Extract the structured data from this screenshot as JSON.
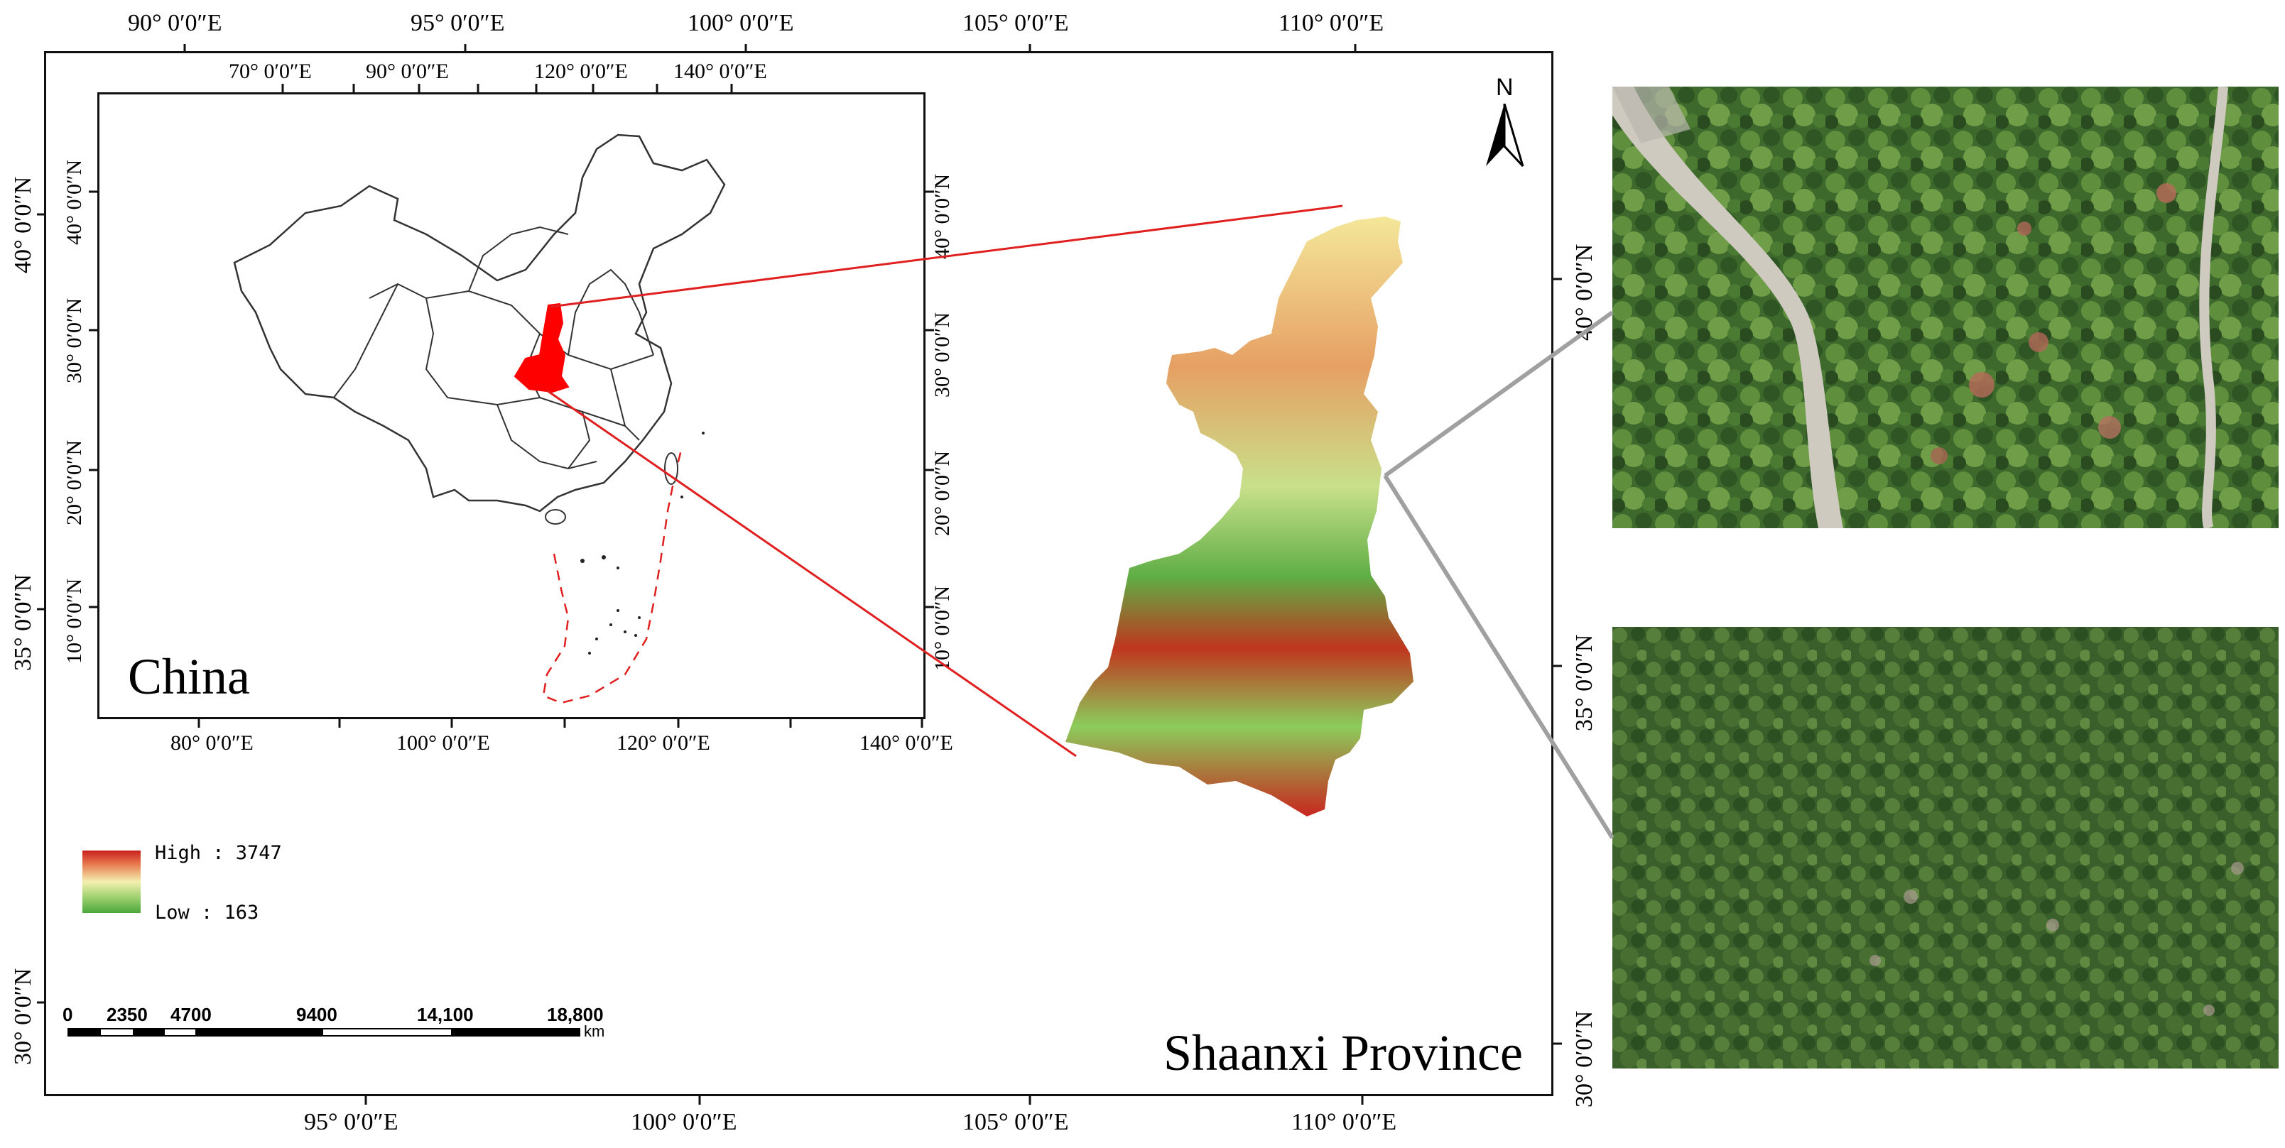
{
  "main_map": {
    "title": "Shaanxi Province",
    "top_ticks": [
      "90° 0′0″E",
      "95° 0′0″E",
      "100° 0′0″E",
      "105° 0′0″E",
      "110° 0′0″E"
    ],
    "bottom_ticks": [
      "95° 0′0″E",
      "100° 0′0″E",
      "105° 0′0″E",
      "110° 0′0″E"
    ],
    "left_ticks": [
      "40° 0′0″N",
      "35° 0′0″N",
      "30° 0′0″N"
    ],
    "right_ticks": [
      "40° 0′0″N",
      "35° 0′0″N",
      "30° 0′0″N"
    ],
    "north_arrow_label": "N"
  },
  "inset_map": {
    "title": "China",
    "top_ticks": [
      "70° 0′0″E",
      "90° 0′0″E",
      "120° 0′0″E",
      "140° 0′0″E"
    ],
    "bottom_ticks": [
      "80° 0′0″E",
      "100° 0′0″E",
      "120° 0′0″E",
      "140° 0′0″E"
    ],
    "left_ticks": [
      "40° 0′0″N",
      "30° 0′0″N",
      "20° 0′0″N",
      "10° 0′0″N"
    ],
    "right_ticks": [
      "40° 0′0″N",
      "30° 0′0″N",
      "20° 0′0″N",
      "10° 0′0″N"
    ]
  },
  "legend": {
    "high_label": "High : 3747",
    "low_label": "Low : 163",
    "high_color": "#c8201c",
    "mid_color": "#f4f0b0",
    "low_color": "#4aa83a"
  },
  "scale_bar": {
    "labels": [
      "0",
      "2350",
      "4700",
      "9400",
      "14,100",
      "18,800"
    ],
    "unit": "km"
  },
  "colors": {
    "highlight": "#ff0000",
    "leader_red": "#e02020",
    "leader_gray": "#a0a0a0"
  }
}
